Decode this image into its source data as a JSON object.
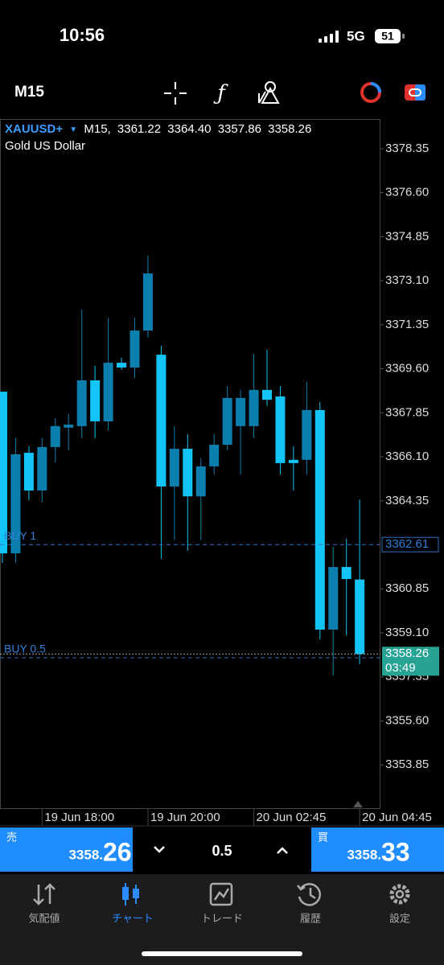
{
  "status_bar": {
    "time": "10:56",
    "network": "5G",
    "battery": "51"
  },
  "chart_data": {
    "type": "candlestick",
    "symbol": "XAUUSD+",
    "timeframe": "M15",
    "description": "Gold US Dollar",
    "categories": [
      null,
      null,
      null,
      "19 Jun 18:00",
      null,
      null,
      null,
      null,
      null,
      null,
      null,
      "19 Jun 20:00",
      null,
      null,
      null,
      null,
      null,
      null,
      null,
      "20 Jun 02:45",
      null,
      null,
      null,
      null,
      null,
      null,
      null,
      "20 Jun 04:45"
    ],
    "open": [
      3368.69,
      3362.26,
      3366.26,
      3364.76,
      3366.49,
      3367.26,
      3367.32,
      3369.14,
      3367.51,
      3369.84,
      3369.65,
      3371.12,
      3370.16,
      3364.92,
      3366.42,
      3364.53,
      3365.72,
      3366.58,
      3367.32,
      3367.32,
      3368.76,
      3368.5,
      3365.98,
      3365.98,
      3367.96,
      3359.23,
      3361.72,
      3361.22
    ],
    "high": [
      3368.69,
      3366.84,
      3366.52,
      3366.84,
      3367.64,
      3367.8,
      3371.95,
      3369.72,
      3371.63,
      3370.04,
      3371.63,
      3374.1,
      3370.52,
      3367.32,
      3367,
      3366.04,
      3367,
      3368.92,
      3368.76,
      3370.2,
      3370.36,
      3368.92,
      3366.52,
      3369.08,
      3368.28,
      3362.52,
      3362.84,
      3364.4
    ],
    "low": [
      3361.88,
      3361.88,
      3364.38,
      3364.28,
      3365.88,
      3366.36,
      3366.84,
      3366.84,
      3367.16,
      3369.56,
      3369.24,
      3370.83,
      3362.04,
      3362.8,
      3362.36,
      3362.8,
      3365.4,
      3366.36,
      3365.4,
      3366.84,
      3368.12,
      3365.4,
      3364.76,
      3365.4,
      3358.84,
      3357.4,
      3359,
      3357.86
    ],
    "close": [
      3362.26,
      3366.2,
      3364.76,
      3366.49,
      3367.32,
      3367.38,
      3369.14,
      3367.51,
      3369.84,
      3369.65,
      3371.12,
      3373.39,
      3364.92,
      3366.42,
      3364.53,
      3365.72,
      3366.58,
      3368.44,
      3368.44,
      3368.76,
      3368.37,
      3365.85,
      3365.85,
      3367.96,
      3359.23,
      3361.72,
      3361.24,
      3358.26
    ],
    "last_ohlc_labels": [
      "3361.22",
      "3364.40",
      "3357.86",
      "3358.26"
    ],
    "up_color": "#0b7fae",
    "down_color": "#13c4f6",
    "ylim": [
      3352.13,
      3379.53
    ],
    "yticks": [
      3353.85,
      {
        "value": 3355.6,
        "label": "3355.60"
      },
      3357.35,
      {
        "value": 3359.1,
        "label": "3359.10"
      },
      3360.85,
      3364.35,
      {
        "value": 3366.1,
        "label": "3366.10"
      },
      3367.85,
      {
        "value": 3369.6,
        "label": "3369.60"
      },
      3371.35,
      {
        "value": 3373.1,
        "label": "3373.10"
      },
      3374.85,
      {
        "value": 3376.6,
        "label": "3376.60"
      },
      3378.35
    ],
    "price_line": {
      "value": 3358.26,
      "timer": "03:49"
    },
    "orders": [
      {
        "label": "BUY 1",
        "price": 3362.61
      },
      {
        "label": "BUY 0.5",
        "price": 3358.11
      }
    ]
  },
  "trade_bar": {
    "sell_label": "売",
    "sell_price": [
      "3358.",
      "26"
    ],
    "volume": "0.5",
    "buy_label": "買",
    "buy_price": [
      "3358.",
      "33"
    ]
  },
  "nav": [
    "気配値",
    "チャート",
    "トレード",
    "履歴",
    "設定"
  ]
}
